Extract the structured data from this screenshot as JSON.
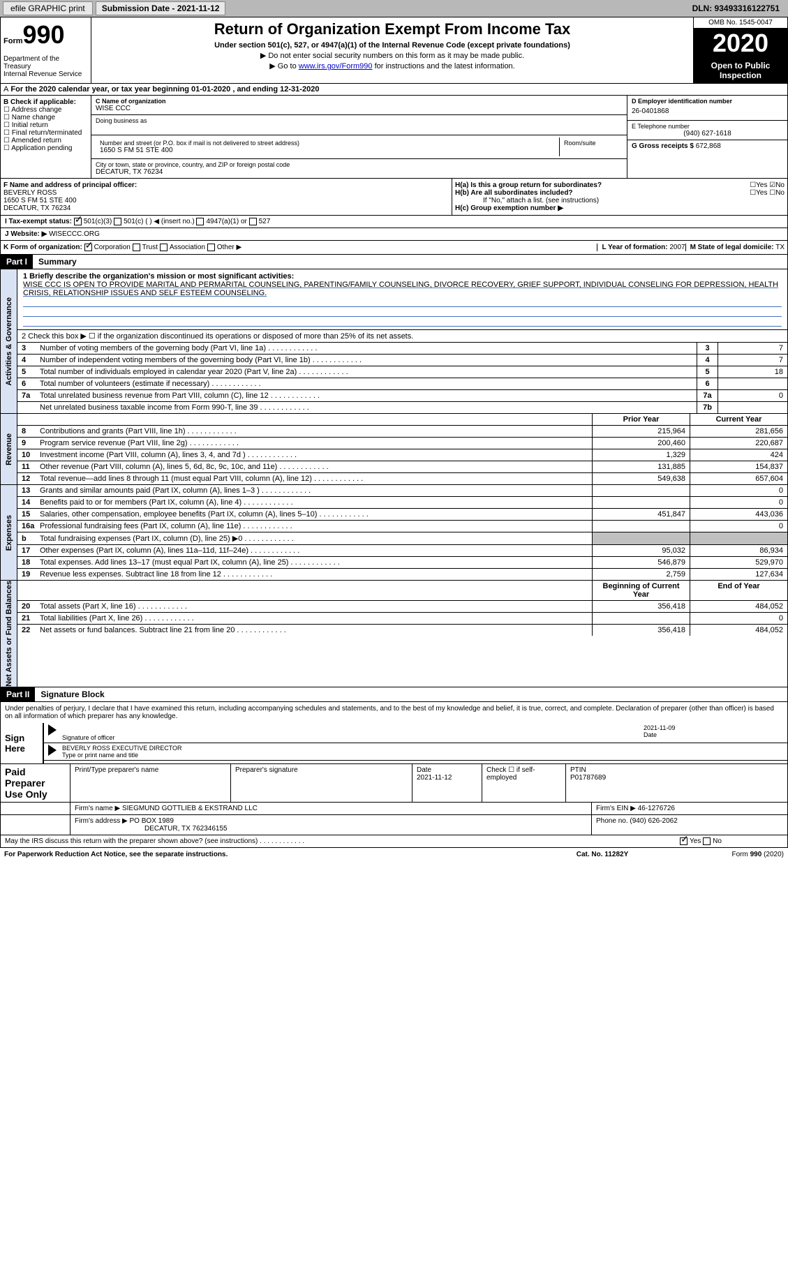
{
  "top": {
    "efile": "efile GRAPHIC print",
    "sub_label": "Submission Date - 2021-11-12",
    "dln": "DLN: 93493316122751"
  },
  "header": {
    "form_word": "Form",
    "form_num": "990",
    "title": "Return of Organization Exempt From Income Tax",
    "subtitle": "Under section 501(c), 527, or 4947(a)(1) of the Internal Revenue Code (except private foundations)",
    "instr1": "▶ Do not enter social security numbers on this form as it may be made public.",
    "instr2_pre": "▶ Go to ",
    "instr2_link": "www.irs.gov/Form990",
    "instr2_post": " for instructions and the latest information.",
    "dept": "Department of the Treasury\nInternal Revenue Service",
    "omb": "OMB No. 1545-0047",
    "year": "2020",
    "open": "Open to Public Inspection"
  },
  "period": "For the 2020 calendar year, or tax year beginning 01-01-2020    , and ending 12-31-2020",
  "box_b": {
    "title": "B Check if applicable:",
    "items": [
      "Address change",
      "Name change",
      "Initial return",
      "Final return/terminated",
      "Amended return",
      "Application pending"
    ]
  },
  "box_c": {
    "name_label": "C Name of organization",
    "name": "WISE CCC",
    "dba_label": "Doing business as",
    "addr_label": "Number and street (or P.O. box if mail is not delivered to street address)",
    "room_label": "Room/suite",
    "addr": "1650 S FM 51 STE 400",
    "city_label": "City or town, state or province, country, and ZIP or foreign postal code",
    "city": "DECATUR, TX   76234"
  },
  "box_d": {
    "label": "D Employer identification number",
    "val": "26-0401868"
  },
  "box_e": {
    "label": "E Telephone number",
    "val": "(940) 627-1618"
  },
  "box_g": {
    "label": "G Gross receipts $",
    "val": "672,868"
  },
  "box_f": {
    "label": "F Name and address of principal officer:",
    "name": "BEVERLY ROSS",
    "addr1": "1650 S FM 51 STE 400",
    "addr2": "DECATUR, TX   76234"
  },
  "box_h": {
    "ha": "H(a)  Is this a group return for subordinates?",
    "hb": "H(b)  Are all subordinates included?",
    "hb_note": "If \"No,\" attach a list. (see instructions)",
    "hc": "H(c)  Group exemption number ▶"
  },
  "row_i": {
    "label": "I    Tax-exempt status:",
    "opts": [
      "501(c)(3)",
      "501(c) (  ) ◀ (insert no.)",
      "4947(a)(1) or",
      "527"
    ]
  },
  "row_j": {
    "label": "J    Website: ▶",
    "val": "WISECCC.ORG"
  },
  "row_k": {
    "label": "K Form of organization:",
    "opts": [
      "Corporation",
      "Trust",
      "Association",
      "Other ▶"
    ]
  },
  "row_l": {
    "label": "L Year of formation:",
    "val": "2007"
  },
  "row_m": {
    "label": "M State of legal domicile:",
    "val": "TX"
  },
  "part1": {
    "num": "Part I",
    "title": "Summary",
    "q1": "1  Briefly describe the organization's mission or most significant activities:",
    "mission": "WISE CCC IS OPEN TO PROVIDE MARITAL AND PERMARITAL COUNSELING, PARENTING/FAMILY COUNSELING, DIVORCE RECOVERY, GRIEF SUPPORT, INDIVIDUAL CONSELING FOR DEPRESSION, HEALTH CRISIS, RELATIONSHIP ISSUES AND SELF ESTEEM COUNSELING.",
    "q2": "2   Check this box ▶ ☐  if the organization discontinued its operations or disposed of more than 25% of its net assets.",
    "gov_rows": [
      {
        "n": "3",
        "t": "Number of voting members of the governing body (Part VI, line 1a)",
        "box": "3",
        "v": "7"
      },
      {
        "n": "4",
        "t": "Number of independent voting members of the governing body (Part VI, line 1b)",
        "box": "4",
        "v": "7"
      },
      {
        "n": "5",
        "t": "Total number of individuals employed in calendar year 2020 (Part V, line 2a)",
        "box": "5",
        "v": "18"
      },
      {
        "n": "6",
        "t": "Total number of volunteers (estimate if necessary)",
        "box": "6",
        "v": ""
      },
      {
        "n": "7a",
        "t": "Total unrelated business revenue from Part VIII, column (C), line 12",
        "box": "7a",
        "v": "0"
      },
      {
        "n": "",
        "t": "Net unrelated business taxable income from Form 990-T, line 39",
        "box": "7b",
        "v": ""
      }
    ],
    "col_prior": "Prior Year",
    "col_curr": "Current Year",
    "rev_rows": [
      {
        "n": "8",
        "t": "Contributions and grants (Part VIII, line 1h)",
        "p": "215,964",
        "c": "281,656"
      },
      {
        "n": "9",
        "t": "Program service revenue (Part VIII, line 2g)",
        "p": "200,460",
        "c": "220,687"
      },
      {
        "n": "10",
        "t": "Investment income (Part VIII, column (A), lines 3, 4, and 7d )",
        "p": "1,329",
        "c": "424"
      },
      {
        "n": "11",
        "t": "Other revenue (Part VIII, column (A), lines 5, 6d, 8c, 9c, 10c, and 11e)",
        "p": "131,885",
        "c": "154,837"
      },
      {
        "n": "12",
        "t": "Total revenue—add lines 8 through 11 (must equal Part VIII, column (A), line 12)",
        "p": "549,638",
        "c": "657,604"
      }
    ],
    "exp_rows": [
      {
        "n": "13",
        "t": "Grants and similar amounts paid (Part IX, column (A), lines 1–3 )",
        "p": "",
        "c": "0"
      },
      {
        "n": "14",
        "t": "Benefits paid to or for members (Part IX, column (A), line 4)",
        "p": "",
        "c": "0"
      },
      {
        "n": "15",
        "t": "Salaries, other compensation, employee benefits (Part IX, column (A), lines 5–10)",
        "p": "451,847",
        "c": "443,036"
      },
      {
        "n": "16a",
        "t": "Professional fundraising fees (Part IX, column (A), line 11e)",
        "p": "",
        "c": "0"
      },
      {
        "n": "b",
        "t": "Total fundraising expenses (Part IX, column (D), line 25) ▶0",
        "p": "gray",
        "c": "gray"
      },
      {
        "n": "17",
        "t": "Other expenses (Part IX, column (A), lines 11a–11d, 11f–24e)",
        "p": "95,032",
        "c": "86,934"
      },
      {
        "n": "18",
        "t": "Total expenses. Add lines 13–17 (must equal Part IX, column (A), line 25)",
        "p": "546,879",
        "c": "529,970"
      },
      {
        "n": "19",
        "t": "Revenue less expenses. Subtract line 18 from line 12",
        "p": "2,759",
        "c": "127,634"
      }
    ],
    "col_begin": "Beginning of Current Year",
    "col_end": "End of Year",
    "net_rows": [
      {
        "n": "20",
        "t": "Total assets (Part X, line 16)",
        "p": "356,418",
        "c": "484,052"
      },
      {
        "n": "21",
        "t": "Total liabilities (Part X, line 26)",
        "p": "",
        "c": "0"
      },
      {
        "n": "22",
        "t": "Net assets or fund balances. Subtract line 21 from line 20",
        "p": "356,418",
        "c": "484,052"
      }
    ],
    "vtabs": [
      "Activities & Governance",
      "Revenue",
      "Expenses",
      "Net Assets or Fund Balances"
    ]
  },
  "part2": {
    "num": "Part II",
    "title": "Signature Block",
    "decl": "Under penalties of perjury, I declare that I have examined this return, including accompanying schedules and statements, and to the best of my knowledge and belief, it is true, correct, and complete. Declaration of preparer (other than officer) is based on all information of which preparer has any knowledge.",
    "sign_here": "Sign Here",
    "sig_officer": "Signature of officer",
    "sig_date": "2021-11-09",
    "date_label": "Date",
    "officer_name": "BEVERLY ROSS  EXECUTIVE DIRECTOR",
    "type_name": "Type or print name and title",
    "paid": "Paid Preparer Use Only",
    "prep_name_label": "Print/Type preparer's name",
    "prep_sig_label": "Preparer's signature",
    "prep_date_label": "Date",
    "prep_date": "2021-11-12",
    "check_self": "Check ☐ if self-employed",
    "ptin_label": "PTIN",
    "ptin": "P01787689",
    "firm_name_label": "Firm's name    ▶",
    "firm_name": "SIEGMUND GOTTLIEB & EKSTRAND LLC",
    "firm_ein_label": "Firm's EIN ▶",
    "firm_ein": "46-1276726",
    "firm_addr_label": "Firm's address ▶",
    "firm_addr": "PO BOX 1989",
    "firm_city": "DECATUR, TX   762346155",
    "phone_label": "Phone no.",
    "phone": "(940) 626-2062",
    "discuss": "May the IRS discuss this return with the preparer shown above? (see instructions)",
    "yes": "Yes",
    "no": "No"
  },
  "footer": {
    "left": "For Paperwork Reduction Act Notice, see the separate instructions.",
    "center": "Cat. No. 11282Y",
    "right": "Form 990 (2020)"
  }
}
